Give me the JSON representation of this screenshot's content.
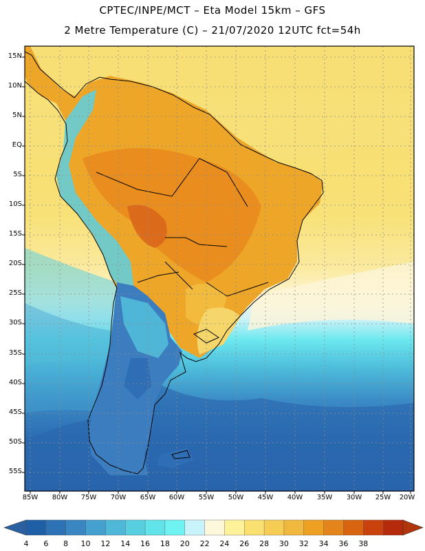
{
  "title_line1": "CPTEC/INPE/MCT –  Eta Model 15km – GFS",
  "title_line2": "2 Metre Temperature (C) – 21/07/2020 12UTC fct=54h",
  "lat_labels": [
    "15N",
    "10N",
    "5N",
    "EQ",
    "5S",
    "10S",
    "15S",
    "20S",
    "25S",
    "30S",
    "35S",
    "40S",
    "45S",
    "50S",
    "55S"
  ],
  "lon_labels": [
    "85W",
    "80W",
    "75W",
    "70W",
    "65W",
    "60W",
    "55W",
    "50W",
    "45W",
    "40W",
    "35W",
    "30W",
    "25W",
    "20W"
  ],
  "colorbar": {
    "labels": [
      "4",
      "6",
      "8",
      "10",
      "12",
      "14",
      "16",
      "18",
      "20",
      "22",
      "24",
      "26",
      "28",
      "30",
      "32",
      "34",
      "36",
      "38"
    ],
    "colors": [
      "#1f5fa6",
      "#2c72b5",
      "#3a86c2",
      "#44a0cf",
      "#4fb8d8",
      "#58cfe0",
      "#62e3ea",
      "#6ef2f2",
      "#c9f3fb",
      "#fdf8dc",
      "#fdf19a",
      "#f9e070",
      "#f5cd54",
      "#f0b83c",
      "#eda021",
      "#e4851b",
      "#d86412",
      "#c9420d",
      "#b52a0b"
    ],
    "end_left_color": "#2a5fa0",
    "end_right_color": "#b0350a"
  }
}
